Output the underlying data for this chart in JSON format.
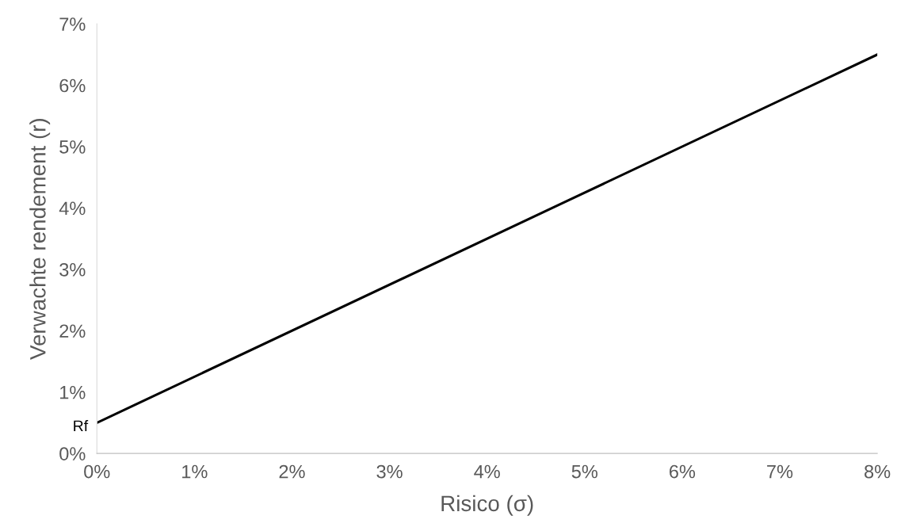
{
  "chart_data": {
    "type": "line",
    "xlabel": "Risico (σ)",
    "ylabel": "Verwachte rendement (r)",
    "x": [
      0,
      8
    ],
    "series": [
      {
        "color": "#000000",
        "values": [
          0.5,
          6.5
        ]
      }
    ],
    "xlim": [
      0,
      8
    ],
    "ylim": [
      0,
      7
    ],
    "xticks": [
      {
        "value": 0,
        "label": "0%"
      },
      {
        "value": 1,
        "label": "1%"
      },
      {
        "value": 2,
        "label": "2%"
      },
      {
        "value": 3,
        "label": "3%"
      },
      {
        "value": 4,
        "label": "4%"
      },
      {
        "value": 5,
        "label": "5%"
      },
      {
        "value": 6,
        "label": "6%"
      },
      {
        "value": 7,
        "label": "7%"
      },
      {
        "value": 8,
        "label": "8%"
      }
    ],
    "yticks": [
      {
        "value": 0,
        "label": "0%"
      },
      {
        "value": 1,
        "label": "1%"
      },
      {
        "value": 2,
        "label": "2%"
      },
      {
        "value": 3,
        "label": "3%"
      },
      {
        "value": 4,
        "label": "4%"
      },
      {
        "value": 5,
        "label": "5%"
      },
      {
        "value": 6,
        "label": "6%"
      },
      {
        "value": 7,
        "label": "7%"
      }
    ],
    "annotations": [
      {
        "text": "Rf",
        "x": 0,
        "y": 0.5
      }
    ],
    "grid": false,
    "marker": "none",
    "line_style": "solid"
  }
}
